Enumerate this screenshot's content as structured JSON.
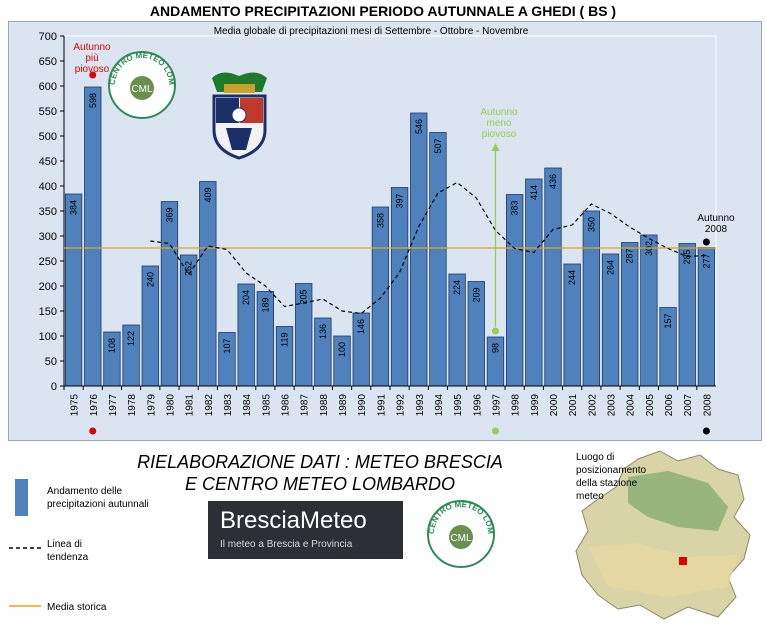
{
  "header": {
    "title": "ANDAMENTO PRECIPITAZIONI PERIODO AUTUNNALE A GHEDI ( BS )",
    "subtitle": "Media globale di precipitazioni mesi di Settembre - Ottobre - Novembre"
  },
  "chart_data": {
    "type": "bar",
    "title": "ANDAMENTO PRECIPITAZIONI PERIODO AUTUNNALE A GHEDI ( BS )",
    "subtitle": "Media globale di precipitazioni mesi di Settembre - Ottobre - Novembre",
    "categories": [
      "1975",
      "1976",
      "1977",
      "1978",
      "1979",
      "1980",
      "1981",
      "1982",
      "1983",
      "1984",
      "1985",
      "1986",
      "1987",
      "1988",
      "1989",
      "1990",
      "1991",
      "1992",
      "1993",
      "1994",
      "1995",
      "1996",
      "1997",
      "1998",
      "1999",
      "2000",
      "2001",
      "2002",
      "2003",
      "2004",
      "2005",
      "2006",
      "2007",
      "2008"
    ],
    "values": [
      384,
      598,
      108,
      122,
      240,
      369,
      262,
      409,
      107,
      204,
      189,
      119,
      205,
      136,
      100,
      146,
      358,
      397,
      546,
      507,
      224,
      209,
      98,
      383,
      414,
      436,
      244,
      350,
      264,
      287,
      302,
      157,
      285,
      277
    ],
    "bar_labels": [
      "384",
      "598",
      "108",
      "122",
      "240",
      "369",
      "262",
      "409",
      "107",
      "204",
      "189",
      "119",
      "205",
      "136",
      "100",
      "146",
      "358",
      "397",
      "546",
      "507",
      "224",
      "209",
      "98",
      "383",
      "414",
      "436",
      "244",
      "350",
      "264",
      "287",
      "302",
      "157",
      "285",
      "277"
    ],
    "trend": [
      null,
      null,
      null,
      null,
      290,
      285,
      223,
      280,
      273,
      226,
      200,
      159,
      166,
      174,
      150,
      145,
      176,
      227,
      319,
      386,
      407,
      376,
      311,
      275,
      267,
      313,
      322,
      364,
      345,
      318,
      295,
      275,
      259,
      261
    ],
    "historical_mean": 276,
    "ylim": [
      0,
      700
    ],
    "yticks": [
      0,
      50,
      100,
      150,
      200,
      250,
      300,
      350,
      400,
      450,
      500,
      550,
      600,
      650,
      700
    ],
    "grid": false,
    "colors": {
      "bars": "#4f81bd",
      "trend": "#000000",
      "mean": "#e8a317",
      "background": "#dbe5f1"
    },
    "annotations": [
      {
        "text_lines": [
          "Autunno",
          "più",
          "piovoso"
        ],
        "year": "1976",
        "color": "#e00000"
      },
      {
        "text_lines": [
          "Autunno",
          "meno",
          "piovoso"
        ],
        "year": "1997",
        "color": "#92d050"
      },
      {
        "text_lines": [
          "Autunno",
          "2008"
        ],
        "year": "2008",
        "color": "#000000"
      }
    ]
  },
  "footer": {
    "elaboration_line1": "RIELABORAZIONE DATI : METEO BRESCIA",
    "elaboration_line2": "E CENTRO METEO LOMBARDO",
    "legend": [
      {
        "label_lines": [
          "Andamento delle",
          "precipitazioni autunnali"
        ],
        "kind": "bar"
      },
      {
        "label_lines": [
          "Linea di",
          "tendenza"
        ],
        "kind": "trend"
      },
      {
        "label_lines": [
          "Media storica"
        ],
        "kind": "mean"
      }
    ],
    "brand_name": "BresciaMeteo",
    "brand_tagline": "Il meteo a Brescia e Provincia",
    "cml_arc_text": "CENTRO METEO LOMBARDO",
    "cml_center": "CML",
    "map_caption_lines": [
      "Luogo di",
      "posizionamento",
      "della stazione",
      "meteo"
    ]
  }
}
